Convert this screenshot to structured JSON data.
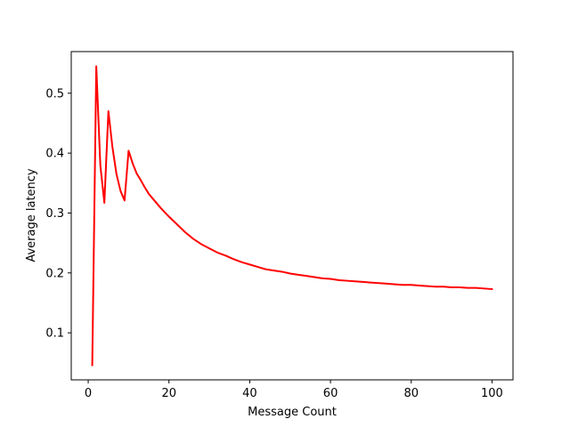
{
  "chart_data": {
    "type": "line",
    "title": "",
    "xlabel": "Message Count",
    "ylabel": "Average latency",
    "xlim": [
      -4.2,
      105.2
    ],
    "ylim": [
      0.0215,
      0.5695
    ],
    "grid": false,
    "x_ticks": [
      0,
      20,
      40,
      60,
      80,
      100
    ],
    "x_tick_labels": [
      "0",
      "20",
      "40",
      "60",
      "80",
      "100"
    ],
    "y_ticks": [
      0.1,
      0.2,
      0.3,
      0.4,
      0.5
    ],
    "y_tick_labels": [
      "0.1",
      "0.2",
      "0.3",
      "0.4",
      "0.5"
    ],
    "series": [
      {
        "color": "#ff0000",
        "x": [
          1,
          2,
          3,
          4,
          5,
          6,
          7,
          8,
          9,
          10,
          11,
          12,
          13,
          14,
          15,
          16,
          18,
          20,
          22,
          24,
          26,
          28,
          30,
          32,
          34,
          36,
          38,
          40,
          42,
          44,
          46,
          48,
          50,
          52,
          54,
          56,
          58,
          60,
          62,
          64,
          66,
          68,
          70,
          72,
          74,
          76,
          78,
          80,
          82,
          84,
          86,
          88,
          90,
          92,
          94,
          96,
          98,
          100
        ],
        "y": [
          0.046,
          0.545,
          0.38,
          0.317,
          0.47,
          0.41,
          0.365,
          0.337,
          0.321,
          0.404,
          0.383,
          0.366,
          0.355,
          0.343,
          0.332,
          0.324,
          0.308,
          0.294,
          0.281,
          0.268,
          0.257,
          0.248,
          0.241,
          0.234,
          0.229,
          0.223,
          0.218,
          0.214,
          0.21,
          0.206,
          0.204,
          0.202,
          0.199,
          0.197,
          0.195,
          0.193,
          0.191,
          0.19,
          0.188,
          0.187,
          0.186,
          0.185,
          0.184,
          0.183,
          0.182,
          0.181,
          0.18,
          0.18,
          0.179,
          0.178,
          0.177,
          0.177,
          0.176,
          0.176,
          0.175,
          0.175,
          0.174,
          0.173
        ]
      }
    ]
  }
}
